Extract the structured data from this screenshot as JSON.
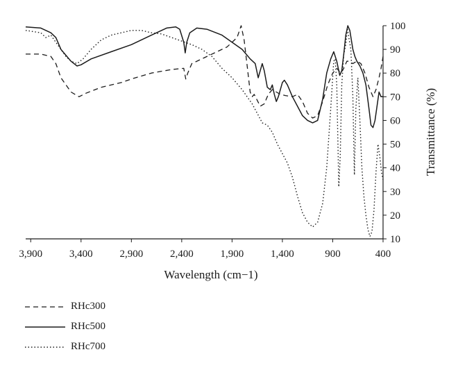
{
  "chart_data": {
    "type": "line",
    "title": "",
    "xlabel": "Wavelength (cm−1)",
    "ylabel": "Transmittance (%)",
    "xlim": [
      3950,
      400
    ],
    "ylim": [
      10,
      100
    ],
    "x_reversed": true,
    "x_ticks": [
      3900,
      3400,
      2900,
      2400,
      1900,
      1400,
      900,
      400
    ],
    "x_tick_labels": [
      "3,900",
      "3,400",
      "2,900",
      "2,400",
      "1,900",
      "1,400",
      "900",
      "400"
    ],
    "y_ticks": [
      10,
      20,
      30,
      40,
      50,
      60,
      70,
      80,
      90,
      100
    ],
    "y_tick_labels": [
      "10",
      "20",
      "30",
      "40",
      "50",
      "60",
      "70",
      "80",
      "90",
      "100"
    ],
    "y_axis_side": "right",
    "grid": false,
    "legend_position": "below-left",
    "series": [
      {
        "name": "RHc300",
        "style": "dashed",
        "color": "#1a1a1a",
        "points": [
          [
            3950,
            88
          ],
          [
            3800,
            88
          ],
          [
            3700,
            87
          ],
          [
            3650,
            84
          ],
          [
            3600,
            78
          ],
          [
            3500,
            72
          ],
          [
            3420,
            70
          ],
          [
            3350,
            71.5
          ],
          [
            3200,
            74
          ],
          [
            3000,
            76
          ],
          [
            2900,
            77.5
          ],
          [
            2700,
            80
          ],
          [
            2500,
            81.5
          ],
          [
            2380,
            82
          ],
          [
            2360,
            77.5
          ],
          [
            2340,
            80
          ],
          [
            2300,
            84
          ],
          [
            2200,
            86
          ],
          [
            2100,
            88
          ],
          [
            1950,
            91
          ],
          [
            1850,
            95
          ],
          [
            1810,
            100
          ],
          [
            1780,
            94
          ],
          [
            1750,
            83
          ],
          [
            1720,
            72
          ],
          [
            1700,
            70
          ],
          [
            1680,
            71
          ],
          [
            1620,
            66
          ],
          [
            1580,
            67
          ],
          [
            1540,
            71
          ],
          [
            1500,
            73
          ],
          [
            1460,
            72
          ],
          [
            1420,
            71
          ],
          [
            1370,
            70.5
          ],
          [
            1300,
            70
          ],
          [
            1250,
            71
          ],
          [
            1200,
            68
          ],
          [
            1150,
            63
          ],
          [
            1100,
            61
          ],
          [
            1050,
            62
          ],
          [
            1000,
            68
          ],
          [
            950,
            75
          ],
          [
            900,
            80
          ],
          [
            860,
            82
          ],
          [
            820,
            80
          ],
          [
            790,
            82
          ],
          [
            760,
            85
          ],
          [
            740,
            85
          ],
          [
            700,
            84
          ],
          [
            660,
            85
          ],
          [
            620,
            84
          ],
          [
            580,
            80
          ],
          [
            540,
            74
          ],
          [
            500,
            70
          ],
          [
            470,
            73
          ],
          [
            440,
            78
          ],
          [
            420,
            82
          ],
          [
            400,
            87
          ]
        ]
      },
      {
        "name": "RHc500",
        "style": "solid",
        "color": "#1a1a1a",
        "points": [
          [
            3950,
            99.5
          ],
          [
            3800,
            99
          ],
          [
            3700,
            97
          ],
          [
            3650,
            95
          ],
          [
            3600,
            90
          ],
          [
            3500,
            85
          ],
          [
            3440,
            83
          ],
          [
            3400,
            83.5
          ],
          [
            3300,
            86
          ],
          [
            3100,
            89
          ],
          [
            2900,
            92
          ],
          [
            2700,
            96
          ],
          [
            2550,
            99
          ],
          [
            2460,
            99.5
          ],
          [
            2420,
            98.5
          ],
          [
            2380,
            93
          ],
          [
            2365,
            88.5
          ],
          [
            2350,
            93
          ],
          [
            2320,
            97
          ],
          [
            2250,
            99
          ],
          [
            2150,
            98.5
          ],
          [
            2000,
            96
          ],
          [
            1900,
            93
          ],
          [
            1800,
            90
          ],
          [
            1720,
            86
          ],
          [
            1670,
            84
          ],
          [
            1640,
            78
          ],
          [
            1620,
            81
          ],
          [
            1600,
            84
          ],
          [
            1580,
            81
          ],
          [
            1550,
            74
          ],
          [
            1520,
            73
          ],
          [
            1500,
            75
          ],
          [
            1480,
            71
          ],
          [
            1460,
            68
          ],
          [
            1440,
            70
          ],
          [
            1400,
            76
          ],
          [
            1380,
            77
          ],
          [
            1350,
            75
          ],
          [
            1300,
            70
          ],
          [
            1250,
            66
          ],
          [
            1200,
            62
          ],
          [
            1150,
            60
          ],
          [
            1100,
            59
          ],
          [
            1050,
            60
          ],
          [
            1000,
            69
          ],
          [
            960,
            80
          ],
          [
            920,
            86
          ],
          [
            890,
            89
          ],
          [
            860,
            85
          ],
          [
            830,
            79
          ],
          [
            810,
            81
          ],
          [
            790,
            88
          ],
          [
            770,
            96
          ],
          [
            750,
            100
          ],
          [
            730,
            98
          ],
          [
            700,
            90
          ],
          [
            680,
            87
          ],
          [
            660,
            85
          ],
          [
            630,
            83
          ],
          [
            600,
            80
          ],
          [
            570,
            75
          ],
          [
            540,
            65
          ],
          [
            520,
            58
          ],
          [
            500,
            57
          ],
          [
            480,
            60
          ],
          [
            460,
            66
          ],
          [
            440,
            72
          ],
          [
            420,
            70
          ],
          [
            400,
            70
          ]
        ]
      },
      {
        "name": "RHc700",
        "style": "dotted",
        "color": "#1a1a1a",
        "points": [
          [
            3950,
            98
          ],
          [
            3800,
            97
          ],
          [
            3750,
            95
          ],
          [
            3700,
            96
          ],
          [
            3650,
            93
          ],
          [
            3600,
            90
          ],
          [
            3550,
            87
          ],
          [
            3500,
            85
          ],
          [
            3440,
            84
          ],
          [
            3380,
            86
          ],
          [
            3300,
            90
          ],
          [
            3200,
            94
          ],
          [
            3100,
            96
          ],
          [
            3000,
            97
          ],
          [
            2900,
            98
          ],
          [
            2800,
            98
          ],
          [
            2700,
            97
          ],
          [
            2600,
            96.5
          ],
          [
            2500,
            95
          ],
          [
            2400,
            93.5
          ],
          [
            2300,
            92
          ],
          [
            2200,
            90
          ],
          [
            2100,
            87
          ],
          [
            2000,
            82
          ],
          [
            1900,
            78
          ],
          [
            1800,
            73
          ],
          [
            1700,
            67
          ],
          [
            1650,
            63
          ],
          [
            1600,
            59
          ],
          [
            1550,
            58
          ],
          [
            1500,
            55
          ],
          [
            1450,
            50
          ],
          [
            1400,
            46
          ],
          [
            1350,
            42
          ],
          [
            1300,
            36
          ],
          [
            1250,
            28
          ],
          [
            1200,
            21
          ],
          [
            1150,
            17
          ],
          [
            1100,
            15
          ],
          [
            1050,
            17
          ],
          [
            1000,
            25
          ],
          [
            960,
            40
          ],
          [
            920,
            65
          ],
          [
            890,
            85
          ],
          [
            875,
            86
          ],
          [
            860,
            75
          ],
          [
            840,
            32
          ],
          [
            825,
            45
          ],
          [
            810,
            75
          ],
          [
            790,
            88
          ],
          [
            770,
            92
          ],
          [
            755,
            99
          ],
          [
            740,
            95
          ],
          [
            720,
            90
          ],
          [
            700,
            70
          ],
          [
            685,
            37
          ],
          [
            670,
            65
          ],
          [
            650,
            78
          ],
          [
            630,
            60
          ],
          [
            610,
            40
          ],
          [
            590,
            28
          ],
          [
            570,
            20
          ],
          [
            550,
            14
          ],
          [
            530,
            11
          ],
          [
            510,
            13
          ],
          [
            490,
            22
          ],
          [
            470,
            38
          ],
          [
            450,
            50
          ],
          [
            430,
            44
          ],
          [
            415,
            38
          ],
          [
            400,
            35
          ]
        ]
      }
    ]
  }
}
